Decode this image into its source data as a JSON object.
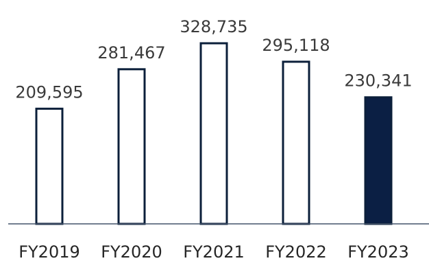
{
  "chart_data": {
    "type": "bar",
    "title": "",
    "xlabel": "",
    "ylabel": "",
    "categories": [
      "FY2019",
      "FY2020",
      "FY2021",
      "FY2022",
      "FY2023"
    ],
    "values": [
      209595,
      281467,
      328735,
      295118,
      230341
    ],
    "data_labels": [
      "209,595",
      "281,467",
      "328,735",
      "295,118",
      "230,341"
    ],
    "ylim": [
      0,
      350000
    ],
    "grid": false,
    "legend": "none",
    "highlight_index": 4,
    "colors": {
      "bar_fill": "#ffffff",
      "bar_stroke": "#0b1f3a",
      "highlight_fill": "#0b1f44",
      "axis": "#44546a",
      "value_text": "#3a3a3a",
      "tick_text": "#262626"
    }
  }
}
